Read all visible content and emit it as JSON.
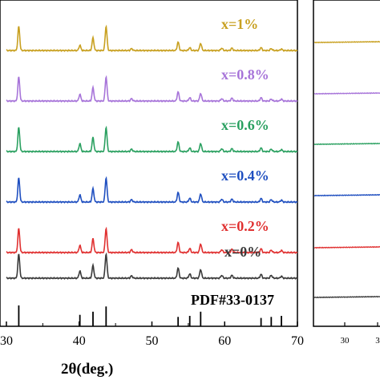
{
  "chart_data": [
    {
      "type": "line",
      "xlabel": "2θ(deg.)",
      "ylabel": "",
      "xlim": [
        30,
        70
      ],
      "x_ticks": [
        "30",
        "40",
        "50",
        "60",
        "70"
      ],
      "peaks_2theta": [
        31.7,
        40.1,
        41.9,
        43.7,
        47.2,
        53.6,
        55.2,
        56.7,
        59.6,
        61.0,
        65.0,
        66.4,
        67.8
      ],
      "series": [
        {
          "name": "x=1%",
          "color": "#c8a020",
          "intensities": [
            1.0,
            0.22,
            0.52,
            1.0,
            0.08,
            0.35,
            0.12,
            0.3,
            0.1,
            0.1,
            0.12,
            0.08,
            0.06
          ]
        },
        {
          "name": "x=0.8%",
          "color": "#a774d9",
          "intensities": [
            1.0,
            0.28,
            0.55,
            1.0,
            0.1,
            0.38,
            0.14,
            0.32,
            0.1,
            0.12,
            0.14,
            0.08,
            0.08
          ]
        },
        {
          "name": "x=0.6%",
          "color": "#2aa060",
          "intensities": [
            1.0,
            0.33,
            0.58,
            1.0,
            0.1,
            0.4,
            0.15,
            0.34,
            0.12,
            0.12,
            0.15,
            0.1,
            0.08
          ]
        },
        {
          "name": "x=0.4%",
          "color": "#1f4fc0",
          "intensities": [
            1.0,
            0.3,
            0.55,
            1.0,
            0.1,
            0.4,
            0.16,
            0.34,
            0.12,
            0.12,
            0.15,
            0.1,
            0.08
          ]
        },
        {
          "name": "x=0.2%",
          "color": "#e03030",
          "intensities": [
            1.0,
            0.3,
            0.57,
            1.0,
            0.12,
            0.42,
            0.17,
            0.36,
            0.12,
            0.14,
            0.16,
            0.1,
            0.09
          ]
        },
        {
          "name": "x=0%",
          "color": "#3a3a3a",
          "intensities": [
            1.0,
            0.3,
            0.52,
            1.0,
            0.1,
            0.42,
            0.18,
            0.36,
            0.12,
            0.12,
            0.16,
            0.12,
            0.08
          ]
        }
      ],
      "reference": {
        "name": "PDF#33-0137",
        "x": [
          31.7,
          40.1,
          41.9,
          43.7,
          53.6,
          55.2,
          56.7,
          65.0,
          66.4,
          67.8
        ],
        "relative_heights": [
          1.0,
          0.55,
          0.7,
          0.95,
          0.45,
          0.5,
          0.7,
          0.4,
          0.45,
          0.5
        ]
      }
    },
    {
      "type": "line",
      "xlabel": "",
      "ylabel": "",
      "x_ticks": [
        "30",
        "3"
      ],
      "series_colors": [
        "#c8a020",
        "#a774d9",
        "#2aa060",
        "#1f4fc0",
        "#e03030",
        "#3a3a3a"
      ]
    }
  ]
}
